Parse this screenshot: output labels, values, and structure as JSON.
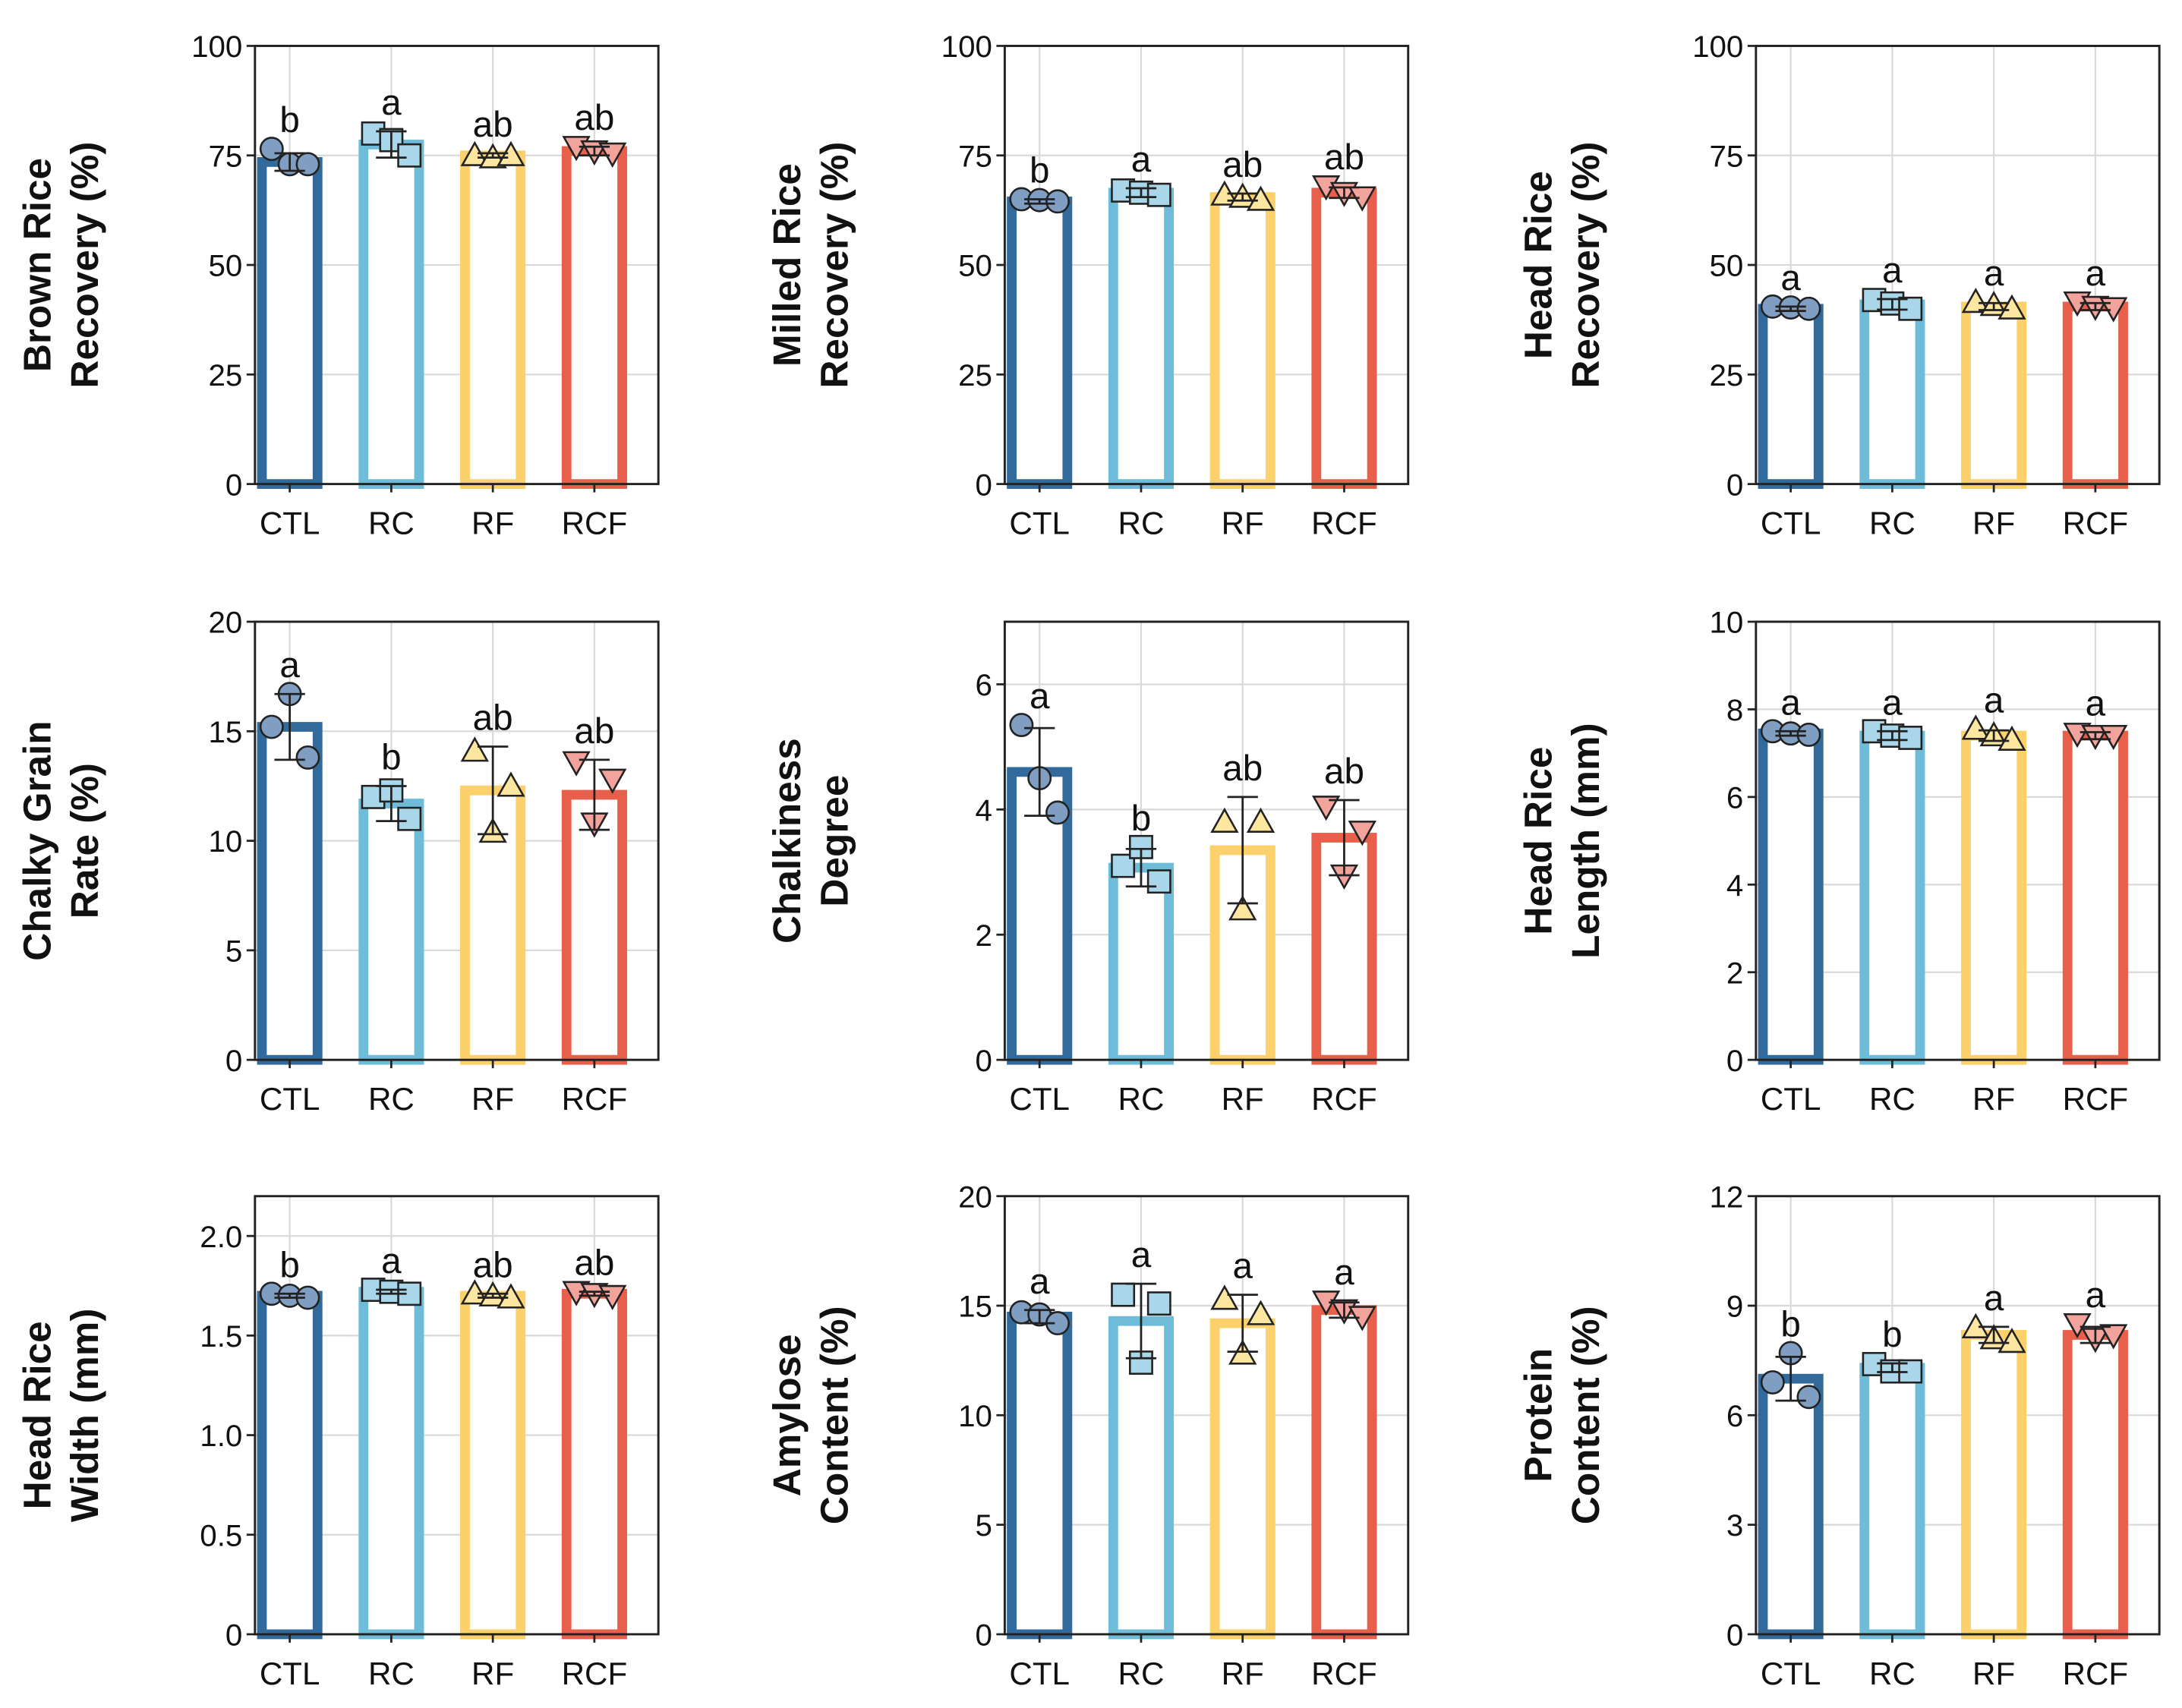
{
  "styles": {
    "groups": [
      "CTL",
      "RC",
      "RF",
      "RCF"
    ],
    "bar_colors": [
      "#336a9c",
      "#6fbcd9",
      "#fcd06a",
      "#e8604c"
    ],
    "marker_fills": [
      "#7f9ec2",
      "#a9d6e8",
      "#fde6a0",
      "#f2a39c"
    ],
    "markers": [
      "circle",
      "square",
      "triangle-up",
      "triangle-down"
    ]
  },
  "chart_data": [
    {
      "type": "bar",
      "ylabel": [
        "Brown Rice",
        "Recovery (%)"
      ],
      "ylim": [
        0,
        100
      ],
      "yticks": [
        "0",
        "25",
        "50",
        "75",
        "100"
      ],
      "ytick_values": [
        0,
        25,
        50,
        75,
        100
      ],
      "categories": [
        "CTL",
        "RC",
        "RF",
        "RCF"
      ],
      "values": [
        73.5,
        77.5,
        75,
        76
      ],
      "errors": [
        2,
        3,
        0.5,
        1
      ],
      "points": [
        [
          76.5,
          73,
          73
        ],
        [
          80,
          78.5,
          75
        ],
        [
          75,
          74.5,
          75
        ],
        [
          77,
          76,
          75.5
        ]
      ],
      "letters": [
        "b",
        "a",
        "ab",
        "ab"
      ],
      "grid": true
    },
    {
      "type": "bar",
      "ylabel": [
        "Milled Rice",
        "Recovery (%)"
      ],
      "ylim": [
        0,
        100
      ],
      "yticks": [
        "0",
        "25",
        "50",
        "75",
        "100"
      ],
      "ytick_values": [
        0,
        25,
        50,
        75,
        100
      ],
      "categories": [
        "CTL",
        "RC",
        "RF",
        "RCF"
      ],
      "values": [
        64.5,
        66.5,
        65.5,
        66.5
      ],
      "errors": [
        0.5,
        1,
        0.8,
        1.2
      ],
      "points": [
        [
          65,
          64.8,
          64.5
        ],
        [
          67,
          66.5,
          66
        ],
        [
          66,
          65.5,
          64.8
        ],
        [
          68,
          66.5,
          65.5
        ]
      ],
      "letters": [
        "b",
        "a",
        "ab",
        "ab"
      ],
      "grid": true
    },
    {
      "type": "bar",
      "ylabel": [
        "Head Rice",
        "Recovery (%)"
      ],
      "ylim": [
        0,
        100
      ],
      "yticks": [
        "0",
        "25",
        "50",
        "75",
        "100"
      ],
      "ytick_values": [
        0,
        25,
        50,
        75,
        100
      ],
      "categories": [
        "CTL",
        "RC",
        "RF",
        "RCF"
      ],
      "values": [
        40,
        41,
        40.5,
        40.5
      ],
      "errors": [
        0.5,
        1.2,
        0.8,
        0.8
      ],
      "points": [
        [
          40.5,
          40.3,
          40
        ],
        [
          42,
          41.2,
          40
        ],
        [
          41.5,
          40.8,
          40
        ],
        [
          41.5,
          40.5,
          40.2
        ]
      ],
      "letters": [
        "a",
        "a",
        "a",
        "a"
      ],
      "grid": true
    },
    {
      "type": "bar",
      "ylabel": [
        "Chalky Grain",
        "Rate (%)"
      ],
      "ylim": [
        0,
        20
      ],
      "yticks": [
        "0",
        "5",
        "10",
        "15",
        "20"
      ],
      "ytick_values": [
        0,
        5,
        10,
        15,
        20
      ],
      "categories": [
        "CTL",
        "RC",
        "RF",
        "RCF"
      ],
      "values": [
        15.2,
        11.7,
        12.3,
        12.1
      ],
      "errors": [
        1.5,
        0.8,
        2,
        1.6
      ],
      "points": [
        [
          15.2,
          16.7,
          13.8
        ],
        [
          12,
          12.3,
          11
        ],
        [
          14.1,
          10.4,
          12.5
        ],
        [
          13.6,
          10.8,
          12.8
        ]
      ],
      "letters": [
        "a",
        "b",
        "ab",
        "ab"
      ],
      "grid": true
    },
    {
      "type": "bar",
      "ylabel": [
        "Chalkiness",
        "Degree"
      ],
      "ylim": [
        0,
        7
      ],
      "yticks": [
        "0",
        "2",
        "4",
        "6"
      ],
      "ytick_values": [
        0,
        2,
        4,
        6
      ],
      "categories": [
        "CTL",
        "RC",
        "RF",
        "RCF"
      ],
      "values": [
        4.6,
        3.07,
        3.35,
        3.55
      ],
      "errors": [
        0.7,
        0.3,
        0.85,
        0.6
      ],
      "points": [
        [
          5.35,
          4.5,
          3.95
        ],
        [
          3.1,
          3.4,
          2.85
        ],
        [
          3.8,
          2.4,
          3.8
        ],
        [
          4.05,
          2.95,
          3.65
        ]
      ],
      "letters": [
        "a",
        "b",
        "ab",
        "ab"
      ],
      "grid": true
    },
    {
      "type": "bar",
      "ylabel": [
        "Head Rice",
        "Length (mm)"
      ],
      "ylim": [
        0,
        10
      ],
      "yticks": [
        "0",
        "2",
        "4",
        "6",
        "8",
        "10"
      ],
      "ytick_values": [
        0,
        2,
        4,
        6,
        8,
        10
      ],
      "categories": [
        "CTL",
        "RC",
        "RF",
        "RCF"
      ],
      "values": [
        7.45,
        7.4,
        7.4,
        7.4
      ],
      "errors": [
        0.05,
        0.1,
        0.12,
        0.08
      ],
      "points": [
        [
          7.5,
          7.45,
          7.42
        ],
        [
          7.5,
          7.4,
          7.35
        ],
        [
          7.55,
          7.4,
          7.3
        ],
        [
          7.45,
          7.4,
          7.4
        ]
      ],
      "letters": [
        "a",
        "a",
        "a",
        "a"
      ],
      "grid": true
    },
    {
      "type": "bar",
      "ylabel": [
        "Head Rice",
        "Width (mm)"
      ],
      "ylim": [
        0,
        2.2
      ],
      "yticks": [
        "0",
        "0.5",
        "1.0",
        "1.5",
        "2.0"
      ],
      "ytick_values": [
        0,
        0.5,
        1.0,
        1.5,
        2.0
      ],
      "categories": [
        "CTL",
        "RC",
        "RF",
        "RCF"
      ],
      "values": [
        1.7,
        1.72,
        1.7,
        1.71
      ],
      "errors": [
        0.01,
        0.01,
        0.01,
        0.01
      ],
      "points": [
        [
          1.71,
          1.7,
          1.69
        ],
        [
          1.73,
          1.72,
          1.71
        ],
        [
          1.71,
          1.7,
          1.69
        ],
        [
          1.72,
          1.71,
          1.7
        ]
      ],
      "letters": [
        "b",
        "a",
        "ab",
        "ab"
      ],
      "grid": true
    },
    {
      "type": "bar",
      "ylabel": [
        "Amylose",
        "Content (%)"
      ],
      "ylim": [
        0,
        20
      ],
      "yticks": [
        "0",
        "5",
        "10",
        "15",
        "20"
      ],
      "ytick_values": [
        0,
        5,
        10,
        15,
        20
      ],
      "categories": [
        "CTL",
        "RC",
        "RF",
        "RCF"
      ],
      "values": [
        14.5,
        14.3,
        14.2,
        14.8
      ],
      "errors": [
        0.3,
        1.7,
        1.3,
        0.35
      ],
      "points": [
        [
          14.7,
          14.6,
          14.2
        ],
        [
          15.5,
          12.4,
          15.1
        ],
        [
          15.3,
          12.8,
          14.6
        ],
        [
          15.2,
          14.8,
          14.5
        ]
      ],
      "letters": [
        "a",
        "a",
        "a",
        "a"
      ],
      "grid": true
    },
    {
      "type": "bar",
      "ylabel": [
        "Protein",
        "Content (%)"
      ],
      "ylim": [
        0,
        12
      ],
      "yticks": [
        "0",
        "3",
        "6",
        "9",
        "12"
      ],
      "ytick_values": [
        0,
        3,
        6,
        9,
        12
      ],
      "categories": [
        "CTL",
        "RC",
        "RF",
        "RCF"
      ],
      "values": [
        7.0,
        7.3,
        8.2,
        8.2
      ],
      "errors": [
        0.6,
        0.12,
        0.22,
        0.22
      ],
      "points": [
        [
          6.9,
          7.7,
          6.5
        ],
        [
          7.4,
          7.2,
          7.2
        ],
        [
          8.4,
          8.1,
          8.0
        ],
        [
          8.5,
          8.1,
          8.2
        ]
      ],
      "letters": [
        "b",
        "b",
        "a",
        "a"
      ],
      "grid": true
    }
  ]
}
